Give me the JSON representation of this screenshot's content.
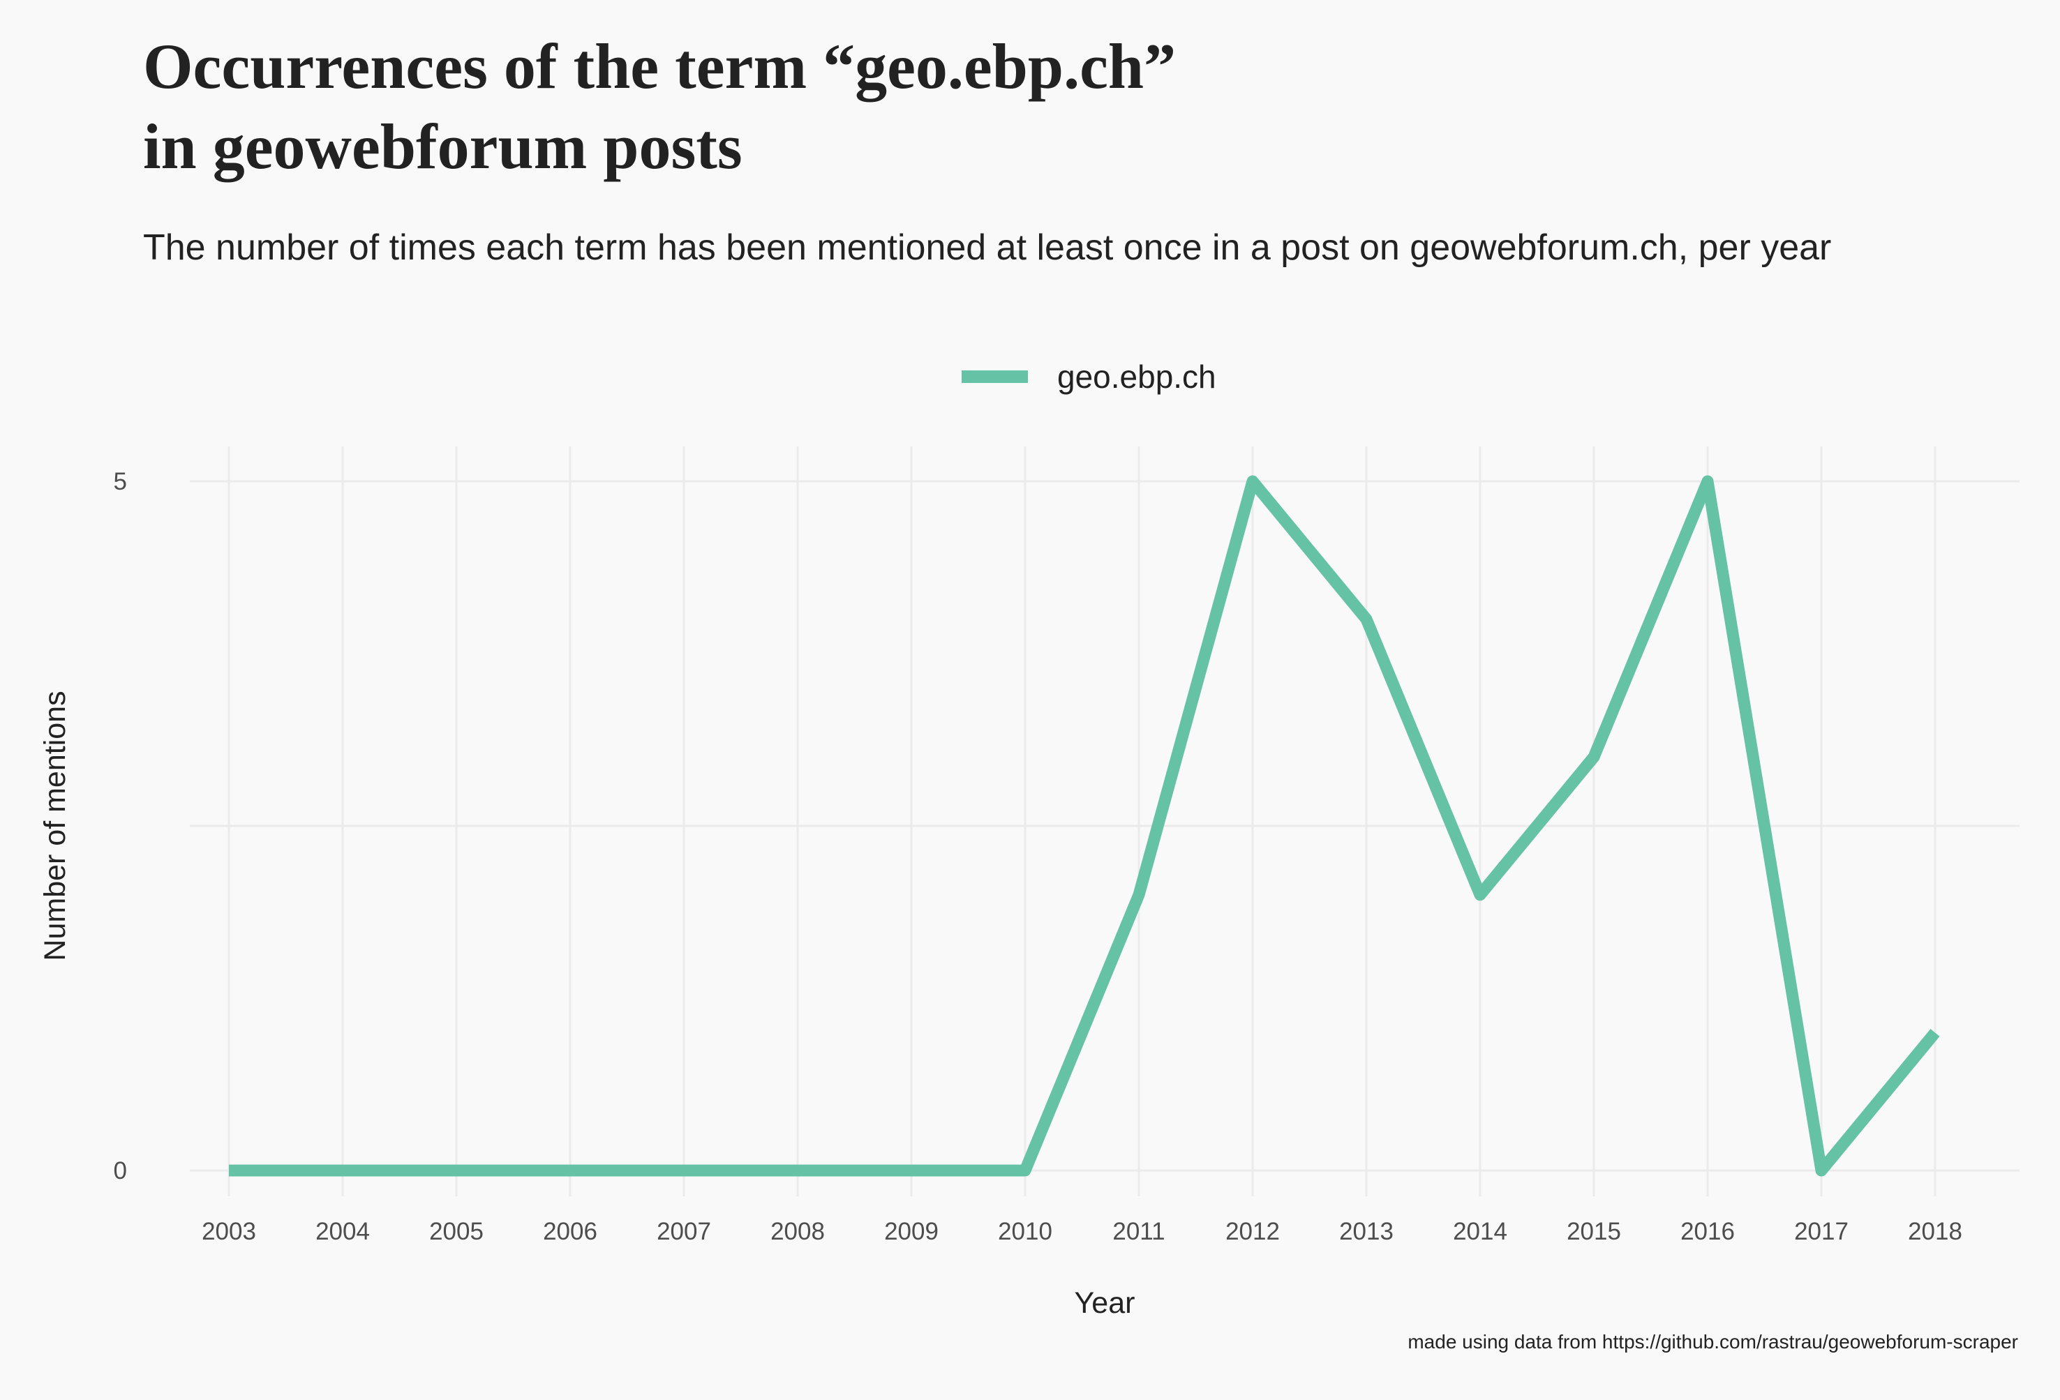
{
  "colors": {
    "background": "#f9f9f9",
    "grid": "#ebebeb",
    "series": "#66c2a5",
    "text": "#222222"
  },
  "chart_data": {
    "type": "line",
    "title_lines": [
      "Occurrences of the term “geo.ebp.ch”",
      "in geowebforum posts"
    ],
    "subtitle": "The number of times each term has been mentioned at least once in a post on geowebforum.ch, per year",
    "xlabel": "Year",
    "ylabel": "Number of mentions",
    "caption": "made using data from https://github.com/rastrau/geowebforum-scraper",
    "legend": {
      "position": "top"
    },
    "x": [
      "2003",
      "2004",
      "2005",
      "2006",
      "2007",
      "2008",
      "2009",
      "2010",
      "2011",
      "2012",
      "2013",
      "2014",
      "2015",
      "2016",
      "2017",
      "2018"
    ],
    "series": [
      {
        "name": "geo.ebp.ch",
        "color": "#66c2a5",
        "values": [
          0,
          0,
          0,
          0,
          0,
          0,
          0,
          0,
          2,
          5,
          4,
          2,
          3,
          5,
          0,
          1
        ]
      }
    ],
    "ylim": [
      0,
      5
    ],
    "yticks": [
      0,
      5
    ],
    "grid": true
  }
}
